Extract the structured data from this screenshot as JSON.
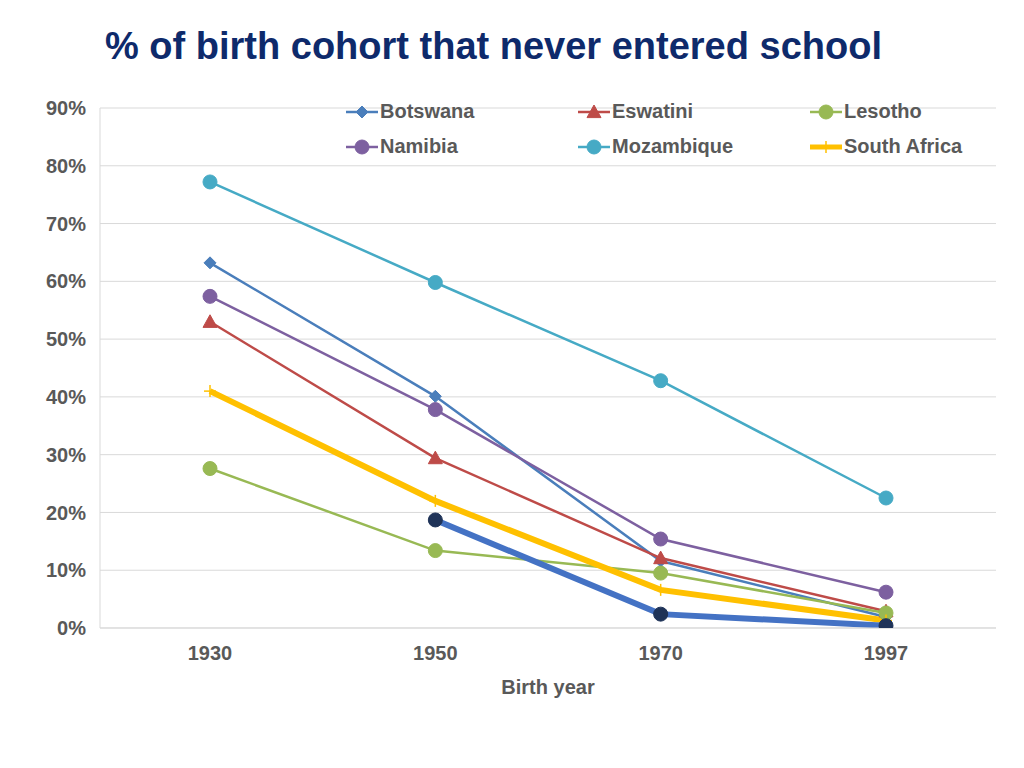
{
  "chart_data": {
    "type": "line",
    "title": "% of birth cohort that never entered school",
    "x_label": "Birth year",
    "categories": [
      "1930",
      "1950",
      "1970",
      "1997"
    ],
    "series": [
      {
        "name": "Botswana",
        "color": "#4a7ebb",
        "marker": "diamond",
        "values": [
          63.2,
          40.1,
          11.6,
          1.9
        ]
      },
      {
        "name": "Eswatini",
        "color": "#be4b48",
        "marker": "triangle",
        "values": [
          53,
          29.4,
          12.1,
          2.9
        ]
      },
      {
        "name": "Lesotho",
        "color": "#98b954",
        "marker": "circle",
        "values": [
          27.6,
          13.4,
          9.5,
          2.6
        ]
      },
      {
        "name": "Namibia",
        "color": "#7d60a0",
        "marker": "circle",
        "values": [
          57.4,
          37.8,
          15.4,
          6.2
        ]
      },
      {
        "name": "Mozambique",
        "color": "#46aac5",
        "marker": "circle",
        "values": [
          77.2,
          59.8,
          42.8,
          22.5
        ]
      },
      {
        "name": "South Africa",
        "color": "#ffc000",
        "marker": "plus",
        "values": [
          41,
          22,
          6.6,
          1.3
        ]
      },
      {
        "color": "#4472c4",
        "marker": "circle",
        "values": [
          null,
          18.7,
          2.4,
          0.4
        ]
      }
    ],
    "ylim": [
      0,
      90
    ],
    "yticks": [
      {
        "value": 0,
        "label": "0%"
      },
      {
        "value": 10,
        "label": "10%"
      },
      {
        "value": 20,
        "label": "20%"
      },
      {
        "value": 30,
        "label": "30%"
      },
      {
        "value": 40,
        "label": "40%"
      },
      {
        "value": 50,
        "label": "50%"
      },
      {
        "value": 60,
        "label": "60%"
      },
      {
        "value": 70,
        "label": "70%"
      },
      {
        "value": 80,
        "label": "80%"
      },
      {
        "value": 90,
        "label": "90%"
      }
    ],
    "grid": true,
    "legend": "top"
  }
}
